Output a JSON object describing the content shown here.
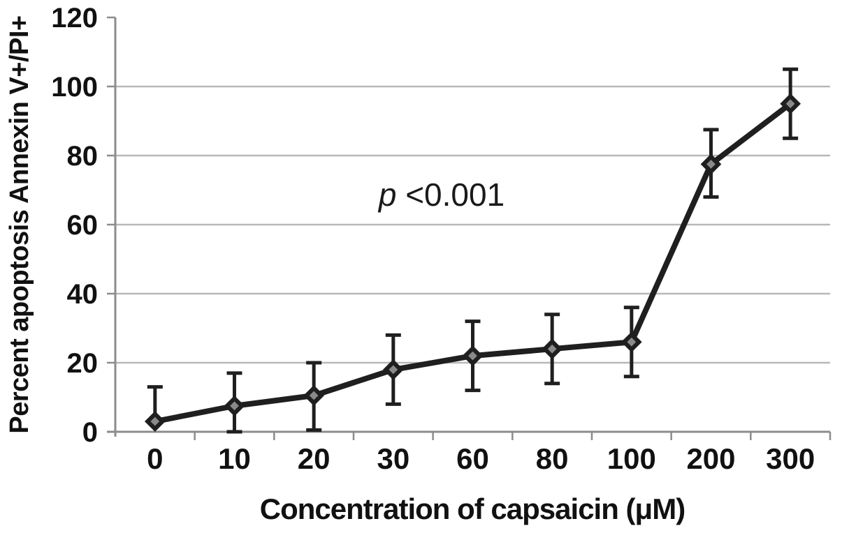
{
  "chart_data": {
    "type": "line",
    "title": "",
    "xlabel": "Concentration of capsaicin (μM)",
    "ylabel": "Percent apoptosis Annexin V+/PI+",
    "categories": [
      "0",
      "10",
      "20",
      "30",
      "60",
      "80",
      "100",
      "200",
      "300"
    ],
    "series": [
      {
        "name": "Percent apoptosis Annexin V+/PI+",
        "values": [
          3,
          7.5,
          10.5,
          18,
          22,
          24,
          26,
          77.5,
          95
        ],
        "error_up": [
          13,
          17,
          20,
          28,
          32,
          34,
          36,
          87.5,
          105
        ],
        "error_down": [
          null,
          0,
          0.5,
          8,
          12,
          14,
          16,
          68,
          85
        ]
      }
    ],
    "ylim": [
      0,
      120
    ],
    "yticks": [
      0,
      20,
      40,
      60,
      80,
      100,
      120
    ],
    "grid": "horizontal-only",
    "legend": "none",
    "annotation": {
      "italic_part": "p",
      "rest_part": "<0.001",
      "full_text": "p<0.001"
    },
    "colors": {
      "series_line": "#1f1f1f",
      "marker_fill": "#1f1f1f",
      "marker_inner": "#8a8a8a",
      "gridline": "#b8b8b8",
      "axis_line": "#8c8c8c",
      "text": "#111111",
      "background": "#ffffff"
    },
    "marker_shape": "diamond",
    "error_bars": "y-both-with-caps"
  }
}
